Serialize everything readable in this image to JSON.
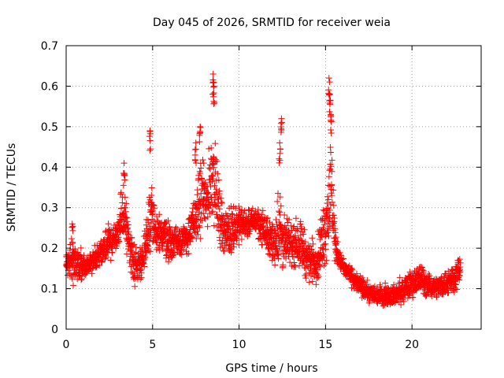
{
  "chart_data": {
    "type": "scatter",
    "title": "Day 045 of 2026, SRMTID for receiver weia",
    "xlabel": "GPS time / hours",
    "ylabel": "SRMTID / TECUs",
    "xlim": [
      0,
      24
    ],
    "ylim": [
      0,
      0.7
    ],
    "xticks": [
      0,
      5,
      10,
      15,
      20
    ],
    "xtick_labels": [
      "0",
      "5",
      "10",
      "15",
      "20"
    ],
    "yticks": [
      0,
      0.1,
      0.2,
      0.3,
      0.4,
      0.5,
      0.6,
      0.7
    ],
    "ytick_labels": [
      "0",
      "0.1",
      "0.2",
      "0.3",
      "0.4",
      "0.5",
      "0.6",
      "0.7"
    ],
    "grid": true,
    "marker": "+",
    "marker_color": "#ff0000",
    "series": [
      {
        "name": "SRMTID",
        "envelope": {
          "x": [
            0,
            0.5,
            1,
            1.5,
            2,
            2.5,
            3,
            3.3,
            3.6,
            4,
            4.5,
            4.9,
            5.2,
            5.6,
            6,
            6.5,
            7,
            7.5,
            7.8,
            8.1,
            8.5,
            8.8,
            9.2,
            9.6,
            10,
            10.5,
            11,
            11.5,
            12,
            12.3,
            12.6,
            13,
            13.5,
            14,
            14.5,
            15,
            15.3,
            15.6,
            16,
            16.5,
            17,
            17.5,
            18,
            18.5,
            19,
            19.5,
            20,
            20.5,
            21,
            21.5,
            22,
            22.5,
            22.8
          ],
          "low": [
            0.14,
            0.08,
            0.12,
            0.13,
            0.14,
            0.15,
            0.16,
            0.2,
            0.14,
            0.09,
            0.11,
            0.14,
            0.15,
            0.16,
            0.15,
            0.16,
            0.17,
            0.19,
            0.2,
            0.22,
            0.22,
            0.18,
            0.17,
            0.16,
            0.2,
            0.22,
            0.22,
            0.18,
            0.14,
            0.1,
            0.12,
            0.14,
            0.13,
            0.1,
            0.1,
            0.12,
            0.16,
            0.15,
            0.13,
            0.1,
            0.07,
            0.06,
            0.05,
            0.05,
            0.05,
            0.05,
            0.07,
            0.07,
            0.07,
            0.07,
            0.07,
            0.08,
            0.1
          ],
          "high": [
            0.2,
            0.25,
            0.19,
            0.2,
            0.24,
            0.28,
            0.3,
            0.4,
            0.3,
            0.22,
            0.24,
            0.44,
            0.3,
            0.32,
            0.28,
            0.28,
            0.28,
            0.36,
            0.46,
            0.4,
            0.58,
            0.4,
            0.3,
            0.34,
            0.32,
            0.3,
            0.32,
            0.3,
            0.28,
            0.42,
            0.3,
            0.28,
            0.3,
            0.24,
            0.24,
            0.38,
            0.56,
            0.24,
            0.18,
            0.16,
            0.14,
            0.12,
            0.12,
            0.12,
            0.12,
            0.14,
            0.16,
            0.18,
            0.14,
            0.14,
            0.16,
            0.18,
            0.2
          ]
        },
        "spikes": [
          {
            "x": 0.35,
            "y": 0.26
          },
          {
            "x": 3.35,
            "y": 0.41
          },
          {
            "x": 4.85,
            "y": 0.49
          },
          {
            "x": 7.5,
            "y": 0.46
          },
          {
            "x": 7.75,
            "y": 0.5
          },
          {
            "x": 8.5,
            "y": 0.63
          },
          {
            "x": 8.55,
            "y": 0.6
          },
          {
            "x": 12.45,
            "y": 0.52
          },
          {
            "x": 12.35,
            "y": 0.46
          },
          {
            "x": 15.2,
            "y": 0.62
          },
          {
            "x": 15.25,
            "y": 0.58
          },
          {
            "x": 15.3,
            "y": 0.53
          }
        ],
        "x_range": [
          0,
          22.8
        ],
        "n_points": 2600
      }
    ]
  }
}
